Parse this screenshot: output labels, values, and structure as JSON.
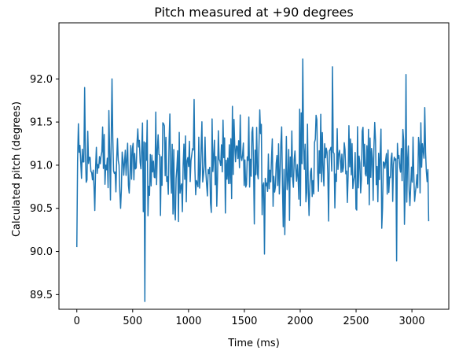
{
  "chart_data": {
    "type": "line",
    "title": "Pitch measured at +90 degrees",
    "xlabel": "Time (ms)",
    "ylabel": "Calculated pitch (degrees)",
    "xlim": [
      -160,
      3330
    ],
    "ylim": [
      89.33,
      92.65
    ],
    "x_ticks": [
      0,
      500,
      1000,
      1500,
      2000,
      2500,
      3000
    ],
    "y_ticks": [
      89.5,
      90.0,
      90.5,
      91.0,
      91.5,
      92.0
    ],
    "y_tick_labels": [
      "89.5",
      "90.0",
      "90.5",
      "91.0",
      "91.5",
      "92.0"
    ],
    "grid": false,
    "series": [
      {
        "color": "#1f77b4",
        "x_start": 0,
        "x_step": 7,
        "points": 451,
        "approx_mean": 91.0,
        "notable_values": [
          {
            "x": 0,
            "y": 90.05
          },
          {
            "x": 70,
            "y": 91.9
          },
          {
            "x": 315,
            "y": 92.0
          },
          {
            "x": 610,
            "y": 89.42
          },
          {
            "x": 1680,
            "y": 89.97
          },
          {
            "x": 2025,
            "y": 92.23
          },
          {
            "x": 2290,
            "y": 92.14
          },
          {
            "x": 2860,
            "y": 89.89
          },
          {
            "x": 2945,
            "y": 92.05
          },
          {
            "x": 3150,
            "y": 90.35
          },
          {
            "x": 3160,
            "y": 91.1
          }
        ]
      }
    ]
  }
}
